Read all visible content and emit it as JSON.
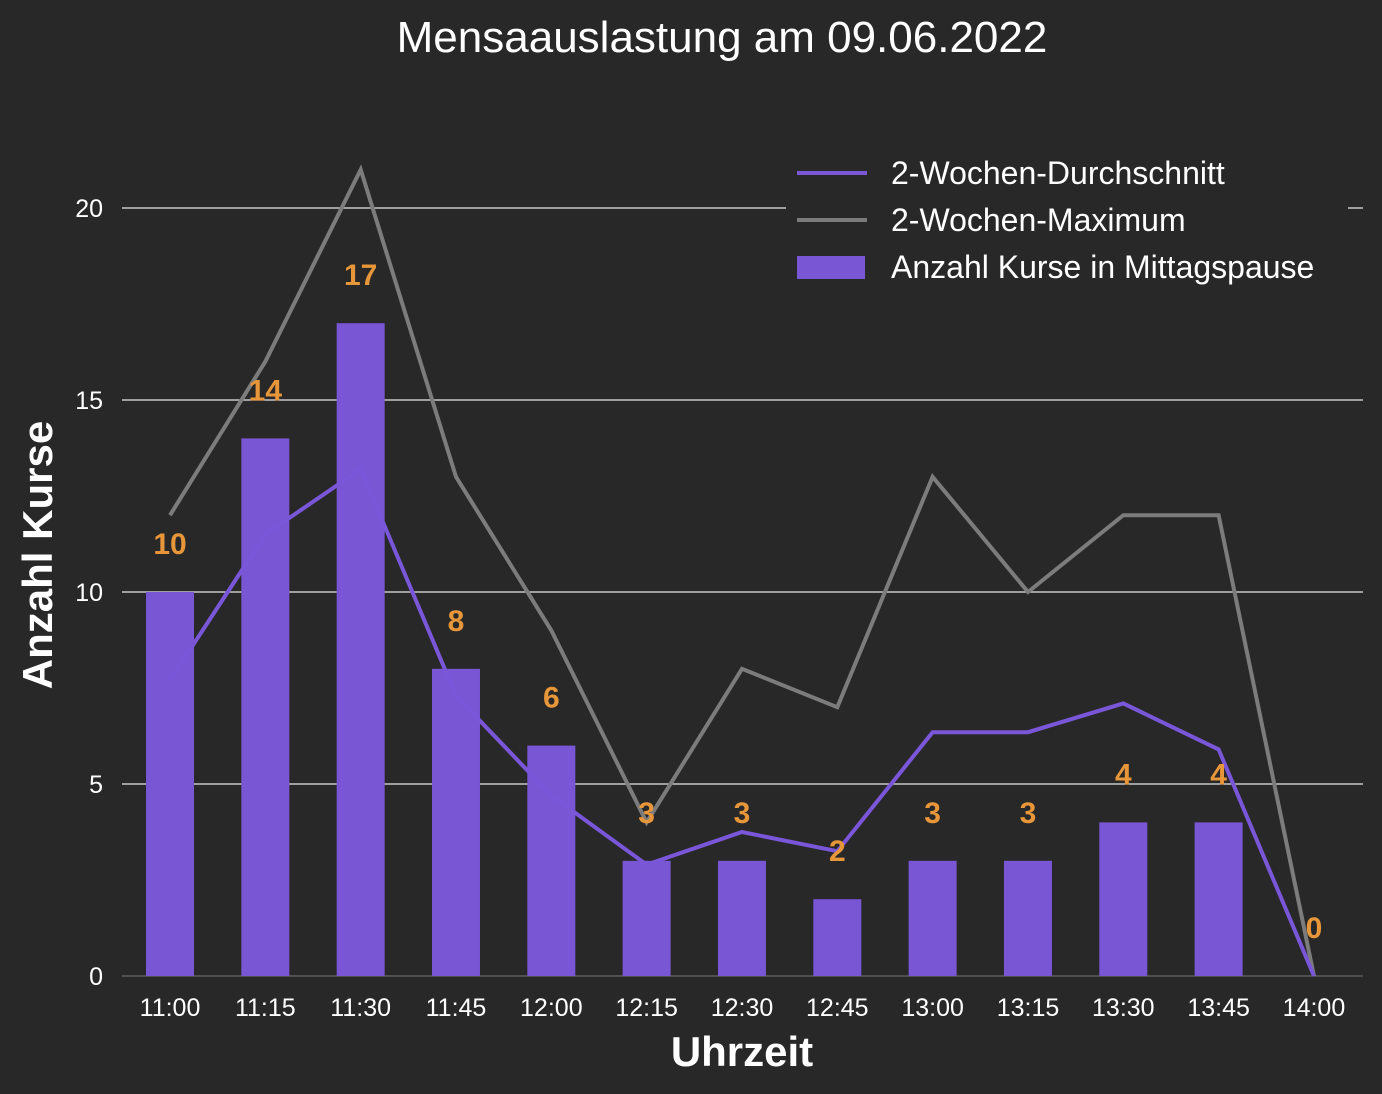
{
  "chart_data": {
    "type": "bar",
    "title": "Mensaauslastung am 09.06.2022",
    "xlabel": "Uhrzeit",
    "ylabel": "Anzahl Kurse",
    "categories": [
      "11:00",
      "11:15",
      "11:30",
      "11:45",
      "12:00",
      "12:15",
      "12:30",
      "12:45",
      "13:00",
      "13:15",
      "13:30",
      "13:45",
      "14:00"
    ],
    "yticks": [
      "0",
      "5",
      "10",
      "15",
      "20"
    ],
    "ylim": [
      0,
      21.5
    ],
    "grid": "horizontal",
    "legend_position": "top-right",
    "series": [
      {
        "name": "Anzahl Kurse in Mittagspause",
        "kind": "bar",
        "color": "#7856d4",
        "values": [
          10,
          14,
          17,
          8,
          6,
          3,
          3,
          2,
          3,
          3,
          4,
          4,
          0
        ]
      },
      {
        "name": "2-Wochen-Durchschnitt",
        "kind": "line",
        "color": "#7a56d8",
        "values": [
          7.7,
          11.5,
          13.2,
          7.3,
          4.7,
          2.9,
          3.75,
          3.25,
          6.35,
          6.35,
          7.1,
          5.9,
          0
        ]
      },
      {
        "name": "2-Wochen-Maximum",
        "kind": "line",
        "color": "#7c7c7c",
        "values": [
          12,
          16,
          21,
          13,
          9,
          4,
          8,
          7,
          13,
          10,
          12,
          12,
          0
        ]
      }
    ],
    "data_labels": [
      "10",
      "14",
      "17",
      "8",
      "6",
      "3",
      "3",
      "2",
      "3",
      "3",
      "4",
      "4",
      "0"
    ]
  }
}
